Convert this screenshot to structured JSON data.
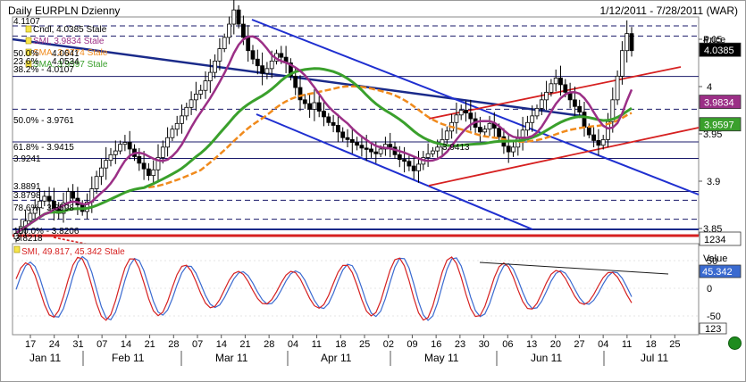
{
  "header": {
    "title": "Daily EURPLN Dzienny",
    "date_range": "1/12/2011 - 7/28/2011 (WAR)"
  },
  "price_panel": {
    "axis_title": "Price",
    "axis_ticks": [
      "4.05",
      "4",
      "3.95",
      "3.9",
      "3.85"
    ],
    "indicators": [
      {
        "text": "Cndl, 4.0385 Stale",
        "color": "#000000"
      },
      {
        "text": "SMI, 3.9834 Stale",
        "color": "#9b2f86"
      },
      {
        "text": "SMA, 3.9774 Stale",
        "color": "#f08a1c"
      },
      {
        "text": "SMA, 3.9597 Stale",
        "color": "#3aa02c"
      }
    ],
    "top_label": "4.1107",
    "fib_labels": [
      "50.0%",
      "23.6%",
      "38.2% - 4.0107",
      "50.0% - 3.9761",
      "61.8% - 3.9415",
      "3.9241",
      "3.8891",
      "3.8798",
      "78.6% - 3.8598",
      "100.0% - 3.8206"
    ],
    "extra_labels": [
      "4.0641",
      "4.0534",
      "3.9413",
      "3.8218"
    ],
    "right_labels": {
      "last": "4.0385",
      "smi": "3.9834",
      "sma_green": "3.9597",
      "bottom": "1234"
    }
  },
  "smi_panel": {
    "legend": "SMI, 49.817, 45.342 Stale",
    "axis_title": "Value",
    "value_box": "45.342",
    "bottom_box": "123",
    "axis_ticks": [
      "50",
      "0",
      "-50"
    ]
  },
  "xaxis": {
    "day_ticks": [
      "17",
      "24",
      "31",
      "07",
      "14",
      "21",
      "28",
      "07",
      "14",
      "21",
      "28",
      "04",
      "11",
      "18",
      "25",
      "02",
      "09",
      "16",
      "23",
      "30",
      "06",
      "13",
      "20",
      "27",
      "04",
      "11",
      "18",
      "25"
    ],
    "months": [
      "Jan 11",
      "Feb 11",
      "Mar 11",
      "Apr 11",
      "May 11",
      "Jun 11",
      "Jul 11"
    ]
  },
  "colors": {
    "up": "#ffffff",
    "down": "#000000",
    "smi_line": "#9b2f86",
    "sma_orange": "#f08a1c",
    "sma_green": "#3aa02c",
    "channel_blue": "#1f2fd0",
    "trend_navy": "#1a2a8a",
    "channel_red": "#d62020",
    "osc_red": "#d62020",
    "osc_blue": "#3a6ad0"
  },
  "chart_data": [
    {
      "type": "candlestick",
      "title": "Daily EURPLN Dzienny",
      "ylabel": "Price",
      "ylim": [
        3.82,
        4.12
      ],
      "grid": false,
      "series": [
        {
          "name": "Cndl",
          "values": [
            3.845,
            3.852,
            3.858,
            3.866,
            3.872,
            3.879,
            3.884,
            3.879,
            3.871,
            3.866,
            3.877,
            3.889,
            3.882,
            3.875,
            3.868,
            3.878,
            3.892,
            3.905,
            3.914,
            3.922,
            3.928,
            3.932,
            3.939,
            3.941,
            3.934,
            3.926,
            3.919,
            3.913,
            3.906,
            3.912,
            3.925,
            3.936,
            3.946,
            3.955,
            3.961,
            3.969,
            3.978,
            3.986,
            3.992,
            3.996,
            4.006,
            4.015,
            4.027,
            4.04,
            4.052,
            4.066,
            4.081,
            4.066,
            4.052,
            4.038,
            4.029,
            4.022,
            4.014,
            4.019,
            4.027,
            4.035,
            4.031,
            4.025,
            4.011,
            3.999,
            3.986,
            3.982,
            3.976,
            3.983,
            3.974,
            3.968,
            3.962,
            3.959,
            3.952,
            3.946,
            3.944,
            3.941,
            3.938,
            3.935,
            3.934,
            3.931,
            3.929,
            3.934,
            3.939,
            3.936,
            3.928,
            3.923,
            3.921,
            3.916,
            3.911,
            3.918,
            3.925,
            3.929,
            3.932,
            3.936,
            3.944,
            3.953,
            3.962,
            3.97,
            3.975,
            3.972,
            3.966,
            3.957,
            3.952,
            3.955,
            3.961,
            3.956,
            3.947,
            3.937,
            3.931,
            3.936,
            3.945,
            3.954,
            3.962,
            3.969,
            3.977,
            3.986,
            3.994,
            4.003,
            4.009,
            4.002,
            3.994,
            3.986,
            3.979,
            3.973,
            3.957,
            3.949,
            3.943,
            3.938,
            3.944,
            3.963,
            3.986,
            4.011,
            4.038,
            4.056,
            4.038
          ]
        },
        {
          "name": "SMI",
          "values": [
            3.9834
          ]
        },
        {
          "name": "SMA",
          "values": [
            3.9774
          ]
        },
        {
          "name": "SMA",
          "values": [
            3.9597
          ]
        }
      ]
    },
    {
      "type": "line",
      "title": "SMI",
      "ylabel": "Value",
      "ylim": [
        -80,
        80
      ],
      "series": [
        {
          "name": "SMI",
          "values": [
            49.817
          ]
        },
        {
          "name": "SMI",
          "values": [
            45.342
          ]
        }
      ]
    }
  ]
}
